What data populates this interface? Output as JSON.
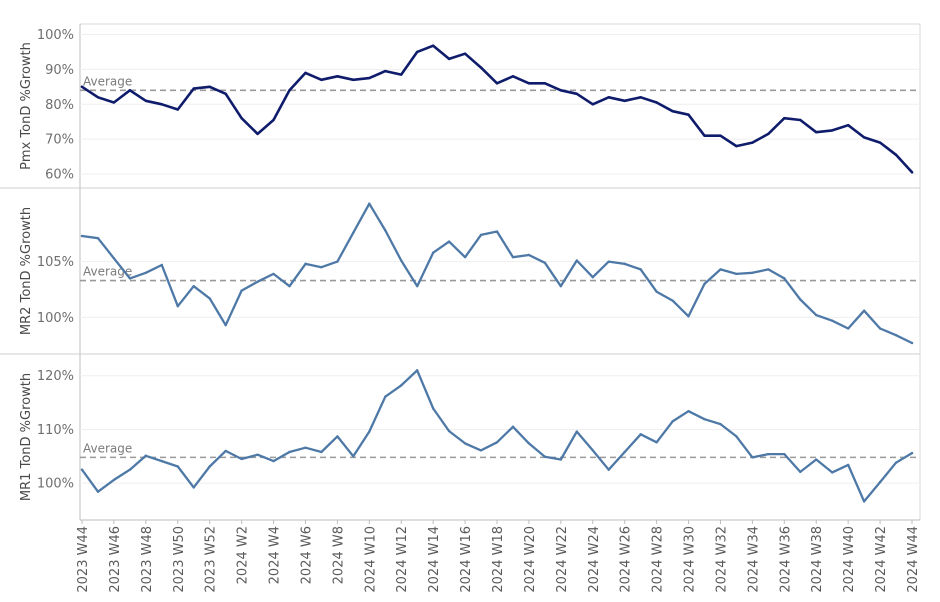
{
  "chart_data": [
    {
      "type": "line",
      "ylabel": "Pmx TonD %Growth",
      "ylim": [
        58,
        101
      ],
      "yticks": [
        60,
        70,
        80,
        90,
        100
      ],
      "ytick_labels": [
        "60%",
        "70%",
        "80%",
        "90%",
        "100%"
      ],
      "average": 84.0,
      "average_label": "Average",
      "color": "#0f1c6b",
      "values": [
        85,
        82,
        80.5,
        84,
        81,
        80,
        78.5,
        84.5,
        85,
        83,
        76,
        71.5,
        75.5,
        84,
        89,
        87,
        88,
        87,
        87.5,
        89.5,
        88.5,
        95,
        96.8,
        93,
        94.5,
        90.5,
        86,
        88,
        86,
        86,
        84,
        83,
        80,
        82,
        81,
        82,
        80.5,
        78,
        77,
        71,
        71,
        68,
        69,
        71.5,
        76,
        75.5,
        72,
        72.5,
        74,
        70.5,
        69,
        65.5,
        60.5
      ]
    },
    {
      "type": "line",
      "ylabel": "MR2 TonD %Growth",
      "ylim": [
        97.7,
        110.8
      ],
      "yticks": [
        100,
        105
      ],
      "ytick_labels": [
        "100%",
        "105%"
      ],
      "average": 103.3,
      "average_label": "Average",
      "color": "#4e79a7",
      "values": [
        107.3,
        107.1,
        105.3,
        103.5,
        104.0,
        104.7,
        101.0,
        102.8,
        101.7,
        99.3,
        102.4,
        103.2,
        103.9,
        102.8,
        104.8,
        104.5,
        105.0,
        107.6,
        110.2,
        107.8,
        105.1,
        102.8,
        105.8,
        106.8,
        105.4,
        107.4,
        107.7,
        105.4,
        105.6,
        104.9,
        102.8,
        105.1,
        103.6,
        105.0,
        104.8,
        104.3,
        102.3,
        101.5,
        100.1,
        103.0,
        104.3,
        103.9,
        104.0,
        104.3,
        103.5,
        101.6,
        100.2,
        99.7,
        99.0,
        100.6,
        99.0,
        98.4,
        97.7
      ]
    },
    {
      "type": "line",
      "ylabel": "MR1 TonD %Growth",
      "ylim": [
        95,
        122
      ],
      "yticks": [
        100,
        110,
        120
      ],
      "ytick_labels": [
        "100%",
        "110%",
        "120%"
      ],
      "average": 104.8,
      "average_label": "Average",
      "color": "#4e79a7",
      "values": [
        102.5,
        98.4,
        100.6,
        102.5,
        105.1,
        104.1,
        103.1,
        99.2,
        103.1,
        106.0,
        104.5,
        105.3,
        104.1,
        105.8,
        106.6,
        105.8,
        108.7,
        105.0,
        109.6,
        116.1,
        118.2,
        121.0,
        113.9,
        109.7,
        107.4,
        106.1,
        107.6,
        110.5,
        107.4,
        104.9,
        104.4,
        109.6,
        106.1,
        102.5,
        105.8,
        109.1,
        107.6,
        111.5,
        113.4,
        111.9,
        111.0,
        108.7,
        104.8,
        105.4,
        105.4,
        102.1,
        104.4,
        102.0,
        103.4,
        96.6,
        100.2,
        103.8,
        105.6
      ]
    }
  ],
  "x_labels": [
    "2023 W44",
    "2023 W46",
    "2023 W48",
    "2023 W50",
    "2023 W52",
    "2024 W2",
    "2024 W4",
    "2024 W6",
    "2024 W8",
    "2024 W10",
    "2024 W12",
    "2024 W14",
    "2024 W16",
    "2024 W18",
    "2024 W20",
    "2024 W22",
    "2024 W24",
    "2024 W26",
    "2024 W28",
    "2024 W30",
    "2024 W32",
    "2024 W34",
    "2024 W36",
    "2024 W38",
    "2024 W40",
    "2024 W42",
    "2024 W44"
  ]
}
